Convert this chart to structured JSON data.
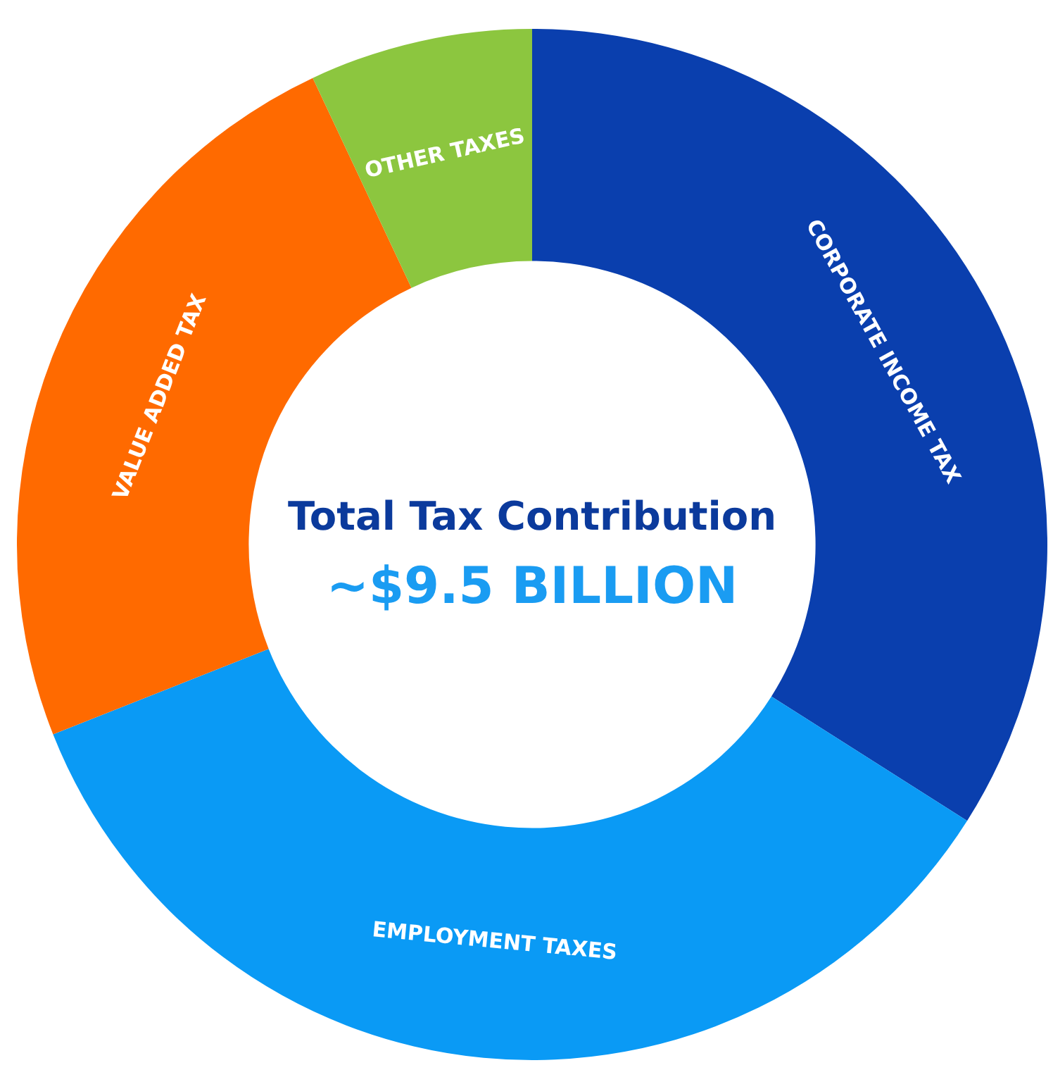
{
  "chart_data": {
    "type": "donut",
    "title": "Total Tax Contribution",
    "annotations": [
      "~$9.5 BILLION"
    ],
    "categories": [
      "CORPORATE INCOME TAX",
      "EMPLOYMENT TAXES",
      "VALUE ADDED TAX",
      "OTHER TAXES"
    ],
    "values": [
      34,
      35,
      24,
      7
    ],
    "colors": [
      "#0a3fae",
      "#0a9af5",
      "#ff6a00",
      "#8cc63f"
    ],
    "legend": false
  }
}
